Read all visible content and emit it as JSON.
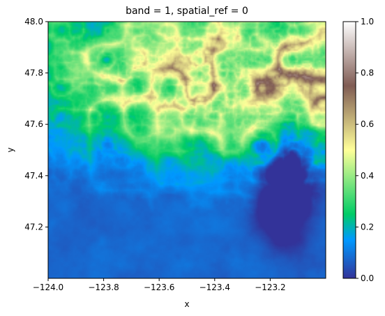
{
  "chart_data": {
    "type": "heatmap",
    "title": "band = 1, spatial_ref = 0",
    "xlabel": "x",
    "ylabel": "y",
    "xlim": [
      -124.0,
      -123.0
    ],
    "ylim": [
      47.0,
      48.0
    ],
    "x_ticks": [
      -124.0,
      -123.8,
      -123.6,
      -123.4,
      -123.2
    ],
    "x_tick_labels": [
      "−124.0",
      "−123.8",
      "−123.6",
      "−123.4",
      "−123.2"
    ],
    "y_ticks": [
      47.2,
      47.4,
      47.6,
      47.8,
      48.0
    ],
    "y_tick_labels": [
      "47.2",
      "47.4",
      "47.6",
      "47.8",
      "48.0"
    ],
    "colorbar": {
      "colormap": "terrain",
      "range": [
        0.0,
        1.0
      ],
      "ticks": [
        0.0,
        0.2,
        0.4,
        0.6,
        0.8,
        1.0
      ],
      "tick_labels": [
        "0.0",
        "0.2",
        "0.4",
        "0.6",
        "0.8",
        "1.0"
      ]
    },
    "grid": false
  }
}
